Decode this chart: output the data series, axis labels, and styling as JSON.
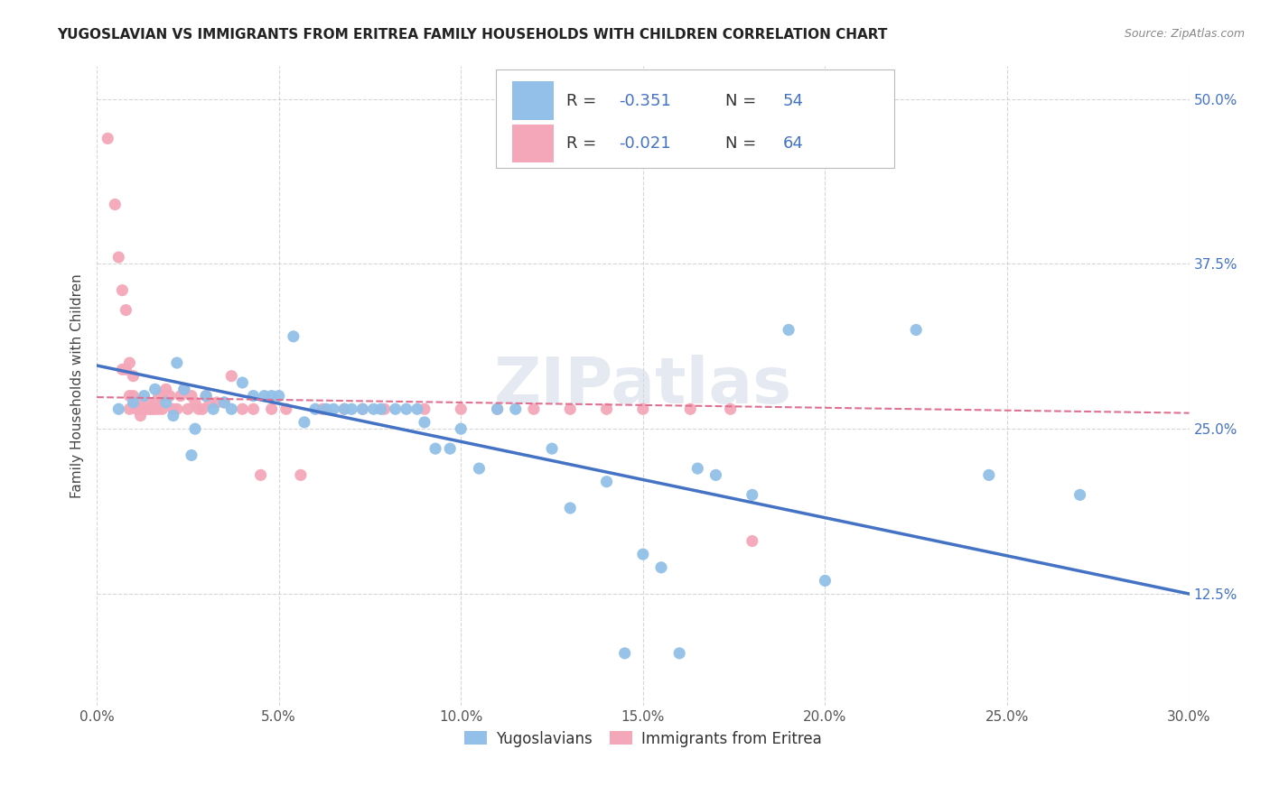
{
  "title": "YUGOSLAVIAN VS IMMIGRANTS FROM ERITREA FAMILY HOUSEHOLDS WITH CHILDREN CORRELATION CHART",
  "source": "Source: ZipAtlas.com",
  "ylabel": "Family Households with Children",
  "ytick_labels": [
    "12.5%",
    "25.0%",
    "37.5%",
    "50.0%"
  ],
  "ytick_values": [
    0.125,
    0.25,
    0.375,
    0.5
  ],
  "xmin": 0.0,
  "xmax": 0.3,
  "ymin": 0.04,
  "ymax": 0.525,
  "legend_label_blue": "Yugoslavians",
  "legend_label_pink": "Immigrants from Eritrea",
  "blue_color": "#92c0e8",
  "pink_color": "#f4a7b9",
  "blue_line_color": "#4472c4",
  "pink_line_color": "#e07090",
  "text_blue_color": "#4472c4",
  "watermark": "ZIPatlas",
  "blue_scatter_x": [
    0.006,
    0.01,
    0.013,
    0.016,
    0.019,
    0.021,
    0.022,
    0.024,
    0.026,
    0.027,
    0.03,
    0.032,
    0.035,
    0.037,
    0.04,
    0.043,
    0.046,
    0.048,
    0.05,
    0.054,
    0.057,
    0.06,
    0.063,
    0.065,
    0.068,
    0.07,
    0.073,
    0.076,
    0.078,
    0.082,
    0.085,
    0.088,
    0.09,
    0.093,
    0.097,
    0.1,
    0.105,
    0.11,
    0.115,
    0.125,
    0.13,
    0.14,
    0.145,
    0.15,
    0.155,
    0.16,
    0.165,
    0.17,
    0.18,
    0.19,
    0.2,
    0.225,
    0.245,
    0.27
  ],
  "blue_scatter_y": [
    0.265,
    0.27,
    0.275,
    0.28,
    0.27,
    0.26,
    0.3,
    0.28,
    0.23,
    0.25,
    0.275,
    0.265,
    0.27,
    0.265,
    0.285,
    0.275,
    0.275,
    0.275,
    0.275,
    0.32,
    0.255,
    0.265,
    0.265,
    0.265,
    0.265,
    0.265,
    0.265,
    0.265,
    0.265,
    0.265,
    0.265,
    0.265,
    0.255,
    0.235,
    0.235,
    0.25,
    0.22,
    0.265,
    0.265,
    0.235,
    0.19,
    0.21,
    0.08,
    0.155,
    0.145,
    0.08,
    0.22,
    0.215,
    0.2,
    0.325,
    0.135,
    0.325,
    0.215,
    0.2
  ],
  "pink_scatter_x": [
    0.003,
    0.005,
    0.006,
    0.007,
    0.007,
    0.008,
    0.008,
    0.009,
    0.009,
    0.009,
    0.01,
    0.01,
    0.011,
    0.011,
    0.012,
    0.012,
    0.013,
    0.013,
    0.014,
    0.014,
    0.015,
    0.015,
    0.016,
    0.016,
    0.017,
    0.017,
    0.018,
    0.018,
    0.019,
    0.02,
    0.021,
    0.022,
    0.023,
    0.024,
    0.025,
    0.026,
    0.027,
    0.028,
    0.029,
    0.03,
    0.031,
    0.033,
    0.035,
    0.037,
    0.04,
    0.043,
    0.045,
    0.048,
    0.052,
    0.056,
    0.062,
    0.068,
    0.073,
    0.079,
    0.09,
    0.1,
    0.11,
    0.12,
    0.13,
    0.14,
    0.15,
    0.163,
    0.174,
    0.18
  ],
  "pink_scatter_y": [
    0.47,
    0.42,
    0.38,
    0.355,
    0.295,
    0.34,
    0.295,
    0.3,
    0.275,
    0.265,
    0.29,
    0.275,
    0.27,
    0.265,
    0.265,
    0.26,
    0.265,
    0.265,
    0.265,
    0.27,
    0.265,
    0.265,
    0.265,
    0.27,
    0.275,
    0.265,
    0.275,
    0.265,
    0.28,
    0.275,
    0.265,
    0.265,
    0.275,
    0.28,
    0.265,
    0.275,
    0.27,
    0.265,
    0.265,
    0.275,
    0.27,
    0.27,
    0.27,
    0.29,
    0.265,
    0.265,
    0.215,
    0.265,
    0.265,
    0.215,
    0.265,
    0.265,
    0.265,
    0.265,
    0.265,
    0.265,
    0.265,
    0.265,
    0.265,
    0.265,
    0.265,
    0.265,
    0.265,
    0.165
  ],
  "blue_line_x": [
    0.0,
    0.3
  ],
  "blue_line_y": [
    0.298,
    0.125
  ],
  "pink_line_x": [
    0.0,
    0.3
  ],
  "pink_line_y": [
    0.274,
    0.262
  ]
}
